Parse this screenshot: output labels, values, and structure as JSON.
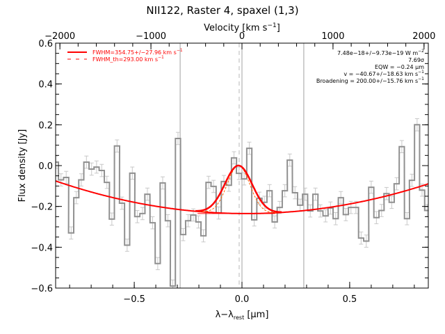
{
  "chart_data": {
    "type": "line",
    "title": "NII122, Raster 4, spaxel (1,3)",
    "xlabel": "λ−λ",
    "xlabel_sub": "rest",
    "xlabel_unit": " [μm]",
    "ylabel": "Flux density [Jy]",
    "top_axis_label": "Velocity [km s",
    "top_axis_label_sup": "−1",
    "top_axis_label_end": "]",
    "xlim": [
      -0.865,
      0.865
    ],
    "ylim": [
      -0.6,
      0.6
    ],
    "top_xlim": [
      -2047,
      2047
    ],
    "x_ticks": [
      -0.5,
      0.0,
      0.5
    ],
    "x_tick_labels": [
      "−0.5",
      "0.0",
      "0.5"
    ],
    "y_ticks": [
      -0.6,
      -0.4,
      -0.2,
      0.0,
      0.2,
      0.4,
      0.6
    ],
    "y_tick_labels": [
      "−0.6",
      "−0.4",
      "−0.2",
      "0.0",
      "0.2",
      "0.4",
      "0.6"
    ],
    "top_ticks": [
      -2000,
      -1000,
      0,
      1000,
      2000
    ],
    "top_tick_labels": [
      "−2000",
      "−1000",
      "0",
      "1000",
      "2000"
    ],
    "vertical_lines": {
      "solid": [
        -0.287,
        0.0,
        0.287
      ],
      "dashed": [
        -0.013
      ]
    },
    "series": [
      {
        "name": "spectrum",
        "style": "histogram",
        "color": "#909090",
        "x": [
          -0.864,
          -0.84,
          -0.816,
          -0.793,
          -0.769,
          -0.746,
          -0.722,
          -0.698,
          -0.675,
          -0.651,
          -0.627,
          -0.604,
          -0.58,
          -0.557,
          -0.533,
          -0.509,
          -0.486,
          -0.462,
          -0.439,
          -0.415,
          -0.391,
          -0.368,
          -0.344,
          -0.321,
          -0.297,
          -0.273,
          -0.25,
          -0.226,
          -0.202,
          -0.179,
          -0.155,
          -0.132,
          -0.108,
          -0.084,
          -0.061,
          -0.037,
          -0.014,
          0.01,
          0.034,
          0.057,
          0.081,
          0.104,
          0.128,
          0.152,
          0.175,
          0.199,
          0.222,
          0.246,
          0.27,
          0.293,
          0.317,
          0.341,
          0.364,
          0.388,
          0.411,
          0.435,
          0.459,
          0.482,
          0.506,
          0.529,
          0.553,
          0.577,
          0.6,
          0.624,
          0.648,
          0.671,
          0.695,
          0.718,
          0.742,
          0.766,
          0.789,
          0.813,
          0.836,
          0.86
        ],
        "y": [
          0.017,
          -0.07,
          -0.058,
          -0.33,
          -0.157,
          -0.07,
          0.017,
          -0.017,
          -0.007,
          -0.024,
          -0.082,
          -0.262,
          0.096,
          -0.184,
          -0.39,
          -0.037,
          -0.25,
          -0.235,
          -0.14,
          -0.28,
          -0.48,
          -0.085,
          -0.27,
          -0.59,
          0.133,
          -0.338,
          -0.27,
          -0.242,
          -0.276,
          -0.344,
          -0.082,
          -0.102,
          -0.232,
          -0.078,
          -0.096,
          0.038,
          -0.038,
          -0.065,
          0.085,
          -0.266,
          -0.16,
          -0.18,
          -0.123,
          -0.276,
          -0.205,
          -0.123,
          0.027,
          -0.133,
          -0.194,
          -0.14,
          -0.222,
          -0.14,
          -0.222,
          -0.246,
          -0.208,
          -0.26,
          -0.157,
          -0.24,
          -0.205,
          -0.205,
          -0.355,
          -0.37,
          -0.106,
          -0.255,
          -0.22,
          -0.137,
          -0.18,
          -0.089,
          0.093,
          -0.26,
          -0.072,
          0.2,
          -0.12,
          -0.22
        ],
        "yerr": 0.03,
        "error_color": "#c8c8c8"
      },
      {
        "name": "continuum",
        "style": "smooth",
        "color": "#ff0000",
        "model": "quadratic",
        "vertex_x": 0.02,
        "vertex_y": -0.235,
        "curvature": 0.204
      },
      {
        "name": "FWHM=354.75+/−27.96 km s",
        "legend_sup": "−1",
        "style": "gaussian",
        "color": "#ff0000",
        "center": -0.016,
        "amplitude": 0.235,
        "fwhm": 0.15
      },
      {
        "name": "FWHM_th=293.00 km s",
        "legend_sup": "−1",
        "style": "gaussian-dashed",
        "color": "#ff6600",
        "center": -0.016,
        "amplitude": 0.235,
        "fwhm": 0.124
      }
    ],
    "annotations": [
      {
        "text": "7.48e−18+/−9.73e−19 W m",
        "sup": "−2"
      },
      {
        "text": "7.69σ",
        "sup": ""
      },
      {
        "text": "EQW = −0.24 μm",
        "sup": ""
      },
      {
        "text": "v = −40.67+/−18.63 km s",
        "sup": "−1"
      },
      {
        "text": "Broadening = 200.00+/−15.76 km s",
        "sup": "−1"
      }
    ],
    "legend_position": "top-left",
    "annotation_position": "top-right",
    "grid": false
  }
}
